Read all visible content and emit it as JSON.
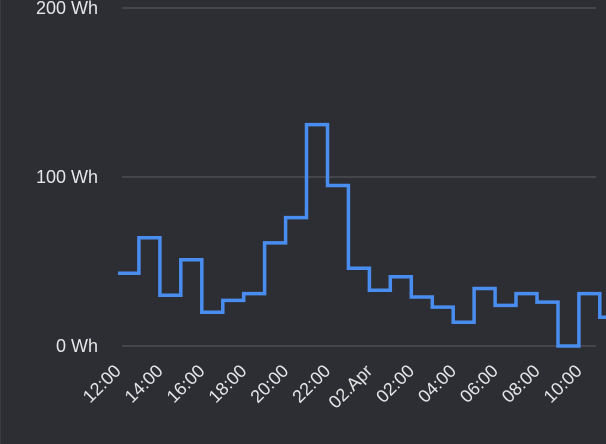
{
  "chart_data": {
    "type": "line",
    "step": true,
    "title": "",
    "xlabel": "",
    "ylabel": "",
    "ylim": [
      0,
      200
    ],
    "y_ticks": [
      "0 Wh",
      "100 Wh",
      "200 Wh"
    ],
    "y_tick_values": [
      0,
      100,
      200
    ],
    "x_tick_labels": [
      "12:00",
      "14:00",
      "16:00",
      "18:00",
      "20:00",
      "22:00",
      "02.Apr",
      "02:00",
      "04:00",
      "06:00",
      "08:00",
      "10:00"
    ],
    "grid": true,
    "legend": "none",
    "series": [
      {
        "color": "#4a8df0",
        "x": [
          "12:00",
          "13:00",
          "14:00",
          "15:00",
          "16:00",
          "17:00",
          "18:00",
          "19:00",
          "20:00",
          "21:00",
          "22:00",
          "23:00",
          "00:00",
          "01:00",
          "02:00",
          "03:00",
          "04:00",
          "05:00",
          "06:00",
          "07:00",
          "08:00",
          "09:00",
          "10:00",
          "11:00"
        ],
        "values": [
          43,
          64,
          30,
          51,
          20,
          27,
          31,
          61,
          76,
          131,
          95,
          46,
          33,
          41,
          29,
          23,
          14,
          34,
          24,
          31,
          26,
          0,
          31,
          17
        ]
      }
    ]
  },
  "colors": {
    "background": "#2d2e33",
    "grid": "#5d5e63",
    "text": "#e6e6e8",
    "line": "#4a8df0"
  }
}
